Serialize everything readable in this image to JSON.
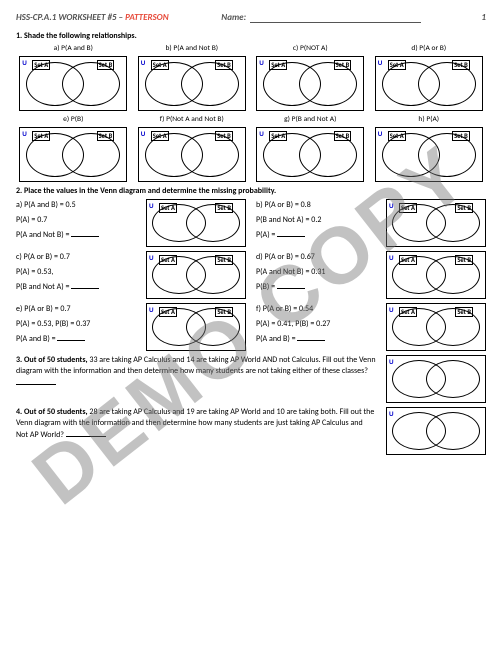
{
  "header": {
    "course": "HSS-CP.A.1 WORKSHEET #5 – ",
    "patt": "PATTERSON",
    "namelbl": "Name:",
    "page": "1"
  },
  "watermark": "DEMO COPY",
  "s1": {
    "title": "1. Shade the following relationships.",
    "caps": [
      "a) P(A and B)",
      "b) P(A and Not B)",
      "c) P(NOT A)",
      "d) P(A or B)",
      "e) P(B)",
      "f) P(Not A and Not B)",
      "g) P(B and Not A)",
      "h) P(A)"
    ]
  },
  "venn": {
    "u": "U",
    "a": "Set A",
    "b": "Set B"
  },
  "s2": {
    "title": "2. Place the values in the Venn diagram and determine the missing probability.",
    "items": [
      {
        "l": [
          "a) P(A and B) = 0.5",
          "P(A) = 0.7",
          "P(A and Not B) = "
        ],
        "r": [
          "b) P(A or B) = 0.8",
          "P(B and Not A) = 0.2",
          "P(A) = "
        ]
      },
      {
        "l": [
          "c) P(A or B) = 0.7",
          "P(A) = 0.53,",
          "P(B and Not A) = "
        ],
        "r": [
          "d) P(A or B) = 0.67",
          "P(A and Not B) = 0.31",
          "P(B) = "
        ]
      },
      {
        "l": [
          "e) P(A or B) = 0.7",
          "P(A) = 0.53, P(B) = 0.37",
          "P(A and B) = "
        ],
        "r": [
          "f) P(A or B) = 0.54",
          "P(A) = 0.41, P(B) = 0.27",
          "P(A and B) = "
        ]
      }
    ]
  },
  "s3": {
    "b": "3. Out of 50 students, ",
    "t": "33 are taking AP Calculus and 14 are taking AP World AND not Calculus.  Fill out the Venn diagram with the information and then determine how many students are not taking either of these classes?  "
  },
  "s4": {
    "b": "4. Out of 50 students, ",
    "t": "28 are taking AP Calculus and 19 are taking AP World and 10 are taking both.  Fill out the Venn diagram with the information and then determine how many students are just taking AP Calculus and Not AP World?  "
  }
}
